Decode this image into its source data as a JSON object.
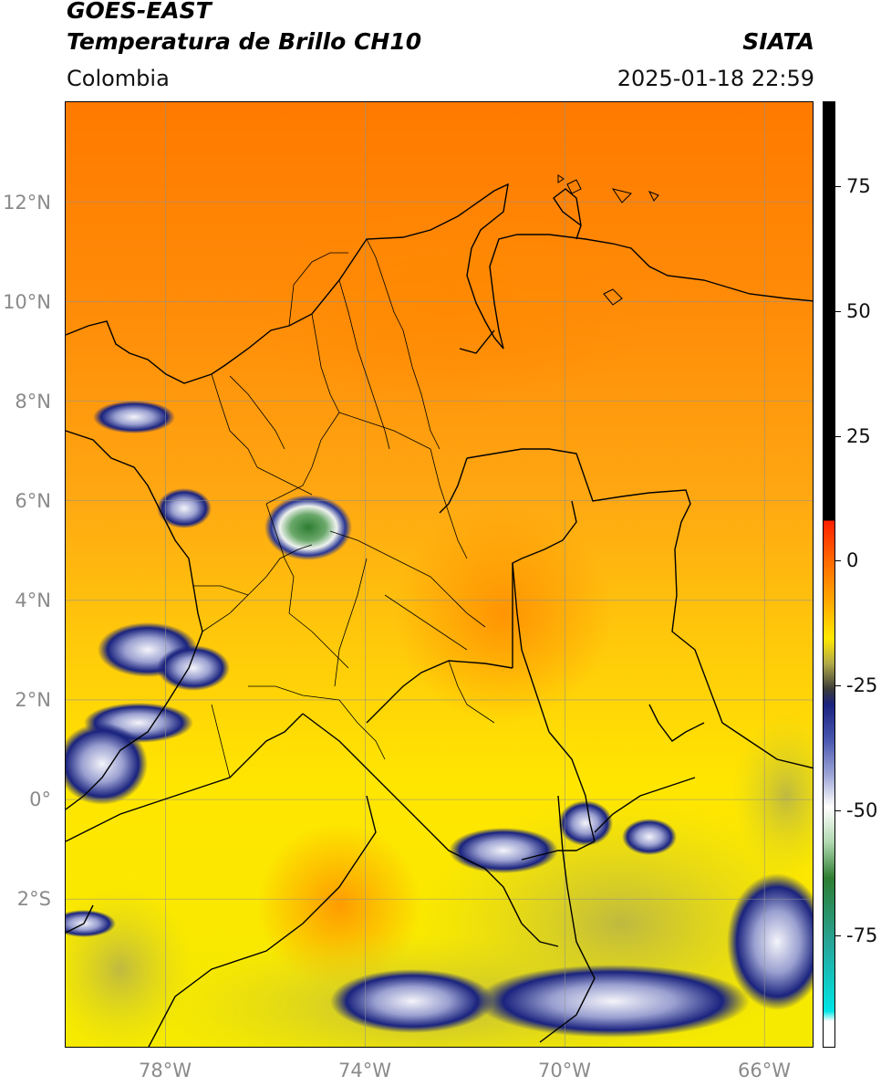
{
  "header": {
    "satellite": "GOES-EAST",
    "product": "Temperatura de Brillo CH10",
    "region": "Colombia",
    "agency": "SIATA",
    "datetime": "2025-01-18 22:59"
  },
  "map": {
    "lon_range": [
      -80,
      -65
    ],
    "lat_range": [
      -5,
      14
    ],
    "lat_ticks": [
      {
        "value": 12,
        "label": "12°N"
      },
      {
        "value": 10,
        "label": "10°N"
      },
      {
        "value": 8,
        "label": "8°N"
      },
      {
        "value": 6,
        "label": "6°N"
      },
      {
        "value": 4,
        "label": "4°N"
      },
      {
        "value": 2,
        "label": "2°N"
      },
      {
        "value": 0,
        "label": "0°"
      },
      {
        "value": -2,
        "label": "2°S"
      }
    ],
    "lon_ticks": [
      {
        "value": -78,
        "label": "78°W"
      },
      {
        "value": -74,
        "label": "74°W"
      },
      {
        "value": -70,
        "label": "70°W"
      },
      {
        "value": -66,
        "label": "66°W"
      }
    ],
    "colors": {
      "warm_orange": "#ff7a00",
      "orange": "#ff9a10",
      "yellow": "#ffe600",
      "olive": "#c4c040",
      "navy": "#1a237e",
      "white_cloud": "#f2f2f8",
      "green_core": "#2e7d32"
    }
  },
  "colorbar": {
    "range": [
      -95,
      90
    ],
    "ticks": [
      {
        "value": 75,
        "label": "75"
      },
      {
        "value": 50,
        "label": "50"
      },
      {
        "value": 25,
        "label": "25"
      },
      {
        "value": 0,
        "label": "0"
      },
      {
        "value": -25,
        "label": "-25"
      },
      {
        "value": -50,
        "label": "-50"
      },
      {
        "value": -75,
        "label": "-75"
      }
    ]
  }
}
